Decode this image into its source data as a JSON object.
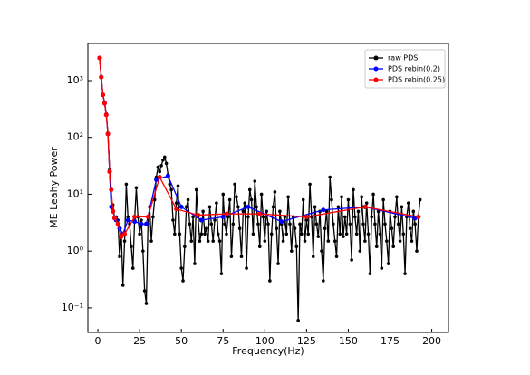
{
  "chart_data": {
    "type": "line",
    "xlabel": "Frequency(Hz)",
    "ylabel": "ME Leahy Power",
    "xlim": [
      -6,
      210
    ],
    "ylim": [
      0.037,
      4500
    ],
    "ylog": true,
    "xticks": [
      0,
      25,
      50,
      75,
      100,
      125,
      150,
      175,
      200
    ],
    "yticks": [
      {
        "value": 0.1,
        "label": "10⁻¹"
      },
      {
        "value": 1,
        "label": "10⁰"
      },
      {
        "value": 10,
        "label": "10¹"
      },
      {
        "value": 100,
        "label": "10²"
      },
      {
        "value": 1000,
        "label": "10³"
      }
    ],
    "legend": "upper right",
    "series": [
      {
        "name": "raw PDS",
        "color": "#000000",
        "x": [
          1,
          2,
          3,
          4,
          5,
          6,
          7,
          8,
          9,
          10,
          11,
          12,
          13,
          14,
          15,
          16,
          17,
          18,
          19,
          20,
          21,
          22,
          23,
          24,
          25,
          26,
          27,
          28,
          29,
          30,
          31,
          32,
          33,
          34,
          35,
          36,
          37,
          38,
          39,
          40,
          41,
          42,
          43,
          44,
          45,
          46,
          47,
          48,
          49,
          50,
          51,
          52,
          53,
          54,
          55,
          56,
          57,
          58,
          59,
          60,
          61,
          62,
          63,
          64,
          65,
          66,
          67,
          68,
          69,
          70,
          71,
          72,
          73,
          74,
          75,
          76,
          77,
          78,
          79,
          80,
          81,
          82,
          83,
          84,
          85,
          86,
          87,
          88,
          89,
          90,
          91,
          92,
          93,
          94,
          95,
          96,
          97,
          98,
          99,
          100,
          101,
          102,
          103,
          104,
          105,
          106,
          107,
          108,
          109,
          110,
          111,
          112,
          113,
          114,
          115,
          116,
          117,
          118,
          119,
          120,
          121,
          122,
          123,
          124,
          125,
          126,
          127,
          128,
          129,
          130,
          131,
          132,
          133,
          134,
          135,
          136,
          137,
          138,
          139,
          140,
          141,
          142,
          143,
          144,
          145,
          146,
          147,
          148,
          149,
          150,
          151,
          152,
          153,
          154,
          155,
          156,
          157,
          158,
          159,
          160,
          161,
          162,
          163,
          164,
          165,
          166,
          167,
          168,
          169,
          170,
          171,
          172,
          173,
          174,
          175,
          176,
          177,
          178,
          179,
          180,
          181,
          182,
          183,
          184,
          185,
          186,
          187,
          188,
          189,
          190,
          191,
          192,
          193
        ],
        "values": [
          2500,
          1150,
          560,
          420,
          260,
          120,
          27,
          6,
          6.5,
          3.8,
          4,
          3.5,
          0.8,
          2,
          0.25,
          1.5,
          15,
          4,
          3,
          1.2,
          0.5,
          3.5,
          13,
          4,
          2,
          3.5,
          1,
          0.2,
          0.12,
          3,
          6,
          1.5,
          4,
          8,
          20,
          30,
          25,
          32,
          40,
          45,
          35,
          22,
          15,
          12,
          3.5,
          2,
          7,
          14,
          2,
          0.5,
          0.3,
          1.2,
          6,
          8,
          3,
          1.5,
          4,
          0.6,
          12,
          4,
          1.5,
          2,
          5,
          2,
          2.5,
          1.5,
          6,
          3,
          1.5,
          3.5,
          7,
          2,
          1.5,
          0.4,
          10,
          3,
          2,
          4,
          8,
          0.8,
          3,
          15,
          9,
          6,
          2.5,
          0.8,
          5,
          7,
          0.5,
          4,
          12,
          8,
          2,
          17,
          6,
          3,
          1.2,
          10,
          4,
          1.5,
          5,
          3,
          0.3,
          2,
          6,
          11,
          2.5,
          0.6,
          5,
          3,
          1.5,
          4,
          2,
          9,
          3,
          1,
          4,
          2.5,
          1.2,
          0.06,
          3,
          2,
          8,
          1.5,
          3.5,
          2,
          15,
          4,
          0.8,
          6,
          3,
          1.8,
          5,
          1,
          0.3,
          2.5,
          5,
          1.5,
          20,
          8,
          3,
          1.5,
          0.8,
          6,
          2,
          9,
          1.8,
          4,
          2,
          8,
          3,
          0.7,
          12,
          4,
          2,
          5,
          1,
          9,
          3,
          1.5,
          7,
          2,
          0.4,
          4,
          10,
          3,
          1.2,
          5,
          2,
          0.5,
          8,
          3,
          1.5,
          0.6,
          5,
          2.5,
          1.2,
          4,
          9,
          3,
          1.5,
          6,
          2,
          0.4,
          4,
          7,
          2.5,
          1.5,
          5,
          3,
          1,
          4,
          8
        ]
      },
      {
        "name": "PDS rebin(0.2)",
        "color": "#0000ff",
        "x": [
          1,
          2,
          3,
          4,
          5,
          6,
          7,
          8,
          9,
          10,
          11,
          13,
          15,
          18,
          22,
          26,
          29,
          35,
          42,
          50,
          62,
          75,
          90,
          110,
          135,
          160,
          190
        ],
        "values": [
          2500,
          1150,
          560,
          400,
          250,
          115,
          25,
          6,
          5,
          3.8,
          3.5,
          2.5,
          2,
          3.5,
          3.3,
          3,
          3,
          18,
          21,
          6,
          3.5,
          4,
          6,
          3.3,
          5.3,
          6,
          3.8
        ]
      },
      {
        "name": "PDS rebin(0.25)",
        "color": "#ff0000",
        "x": [
          1,
          2,
          3,
          4,
          5,
          6,
          7,
          8,
          9,
          10,
          12,
          14,
          16,
          22,
          30,
          37,
          47,
          60,
          77,
          97,
          125,
          160,
          192
        ],
        "values": [
          2500,
          1150,
          560,
          400,
          250,
          115,
          25,
          12,
          5,
          3.8,
          3,
          1.8,
          2,
          4,
          4,
          20,
          5.5,
          4.3,
          4.5,
          4.5,
          4,
          6,
          4
        ]
      }
    ]
  }
}
